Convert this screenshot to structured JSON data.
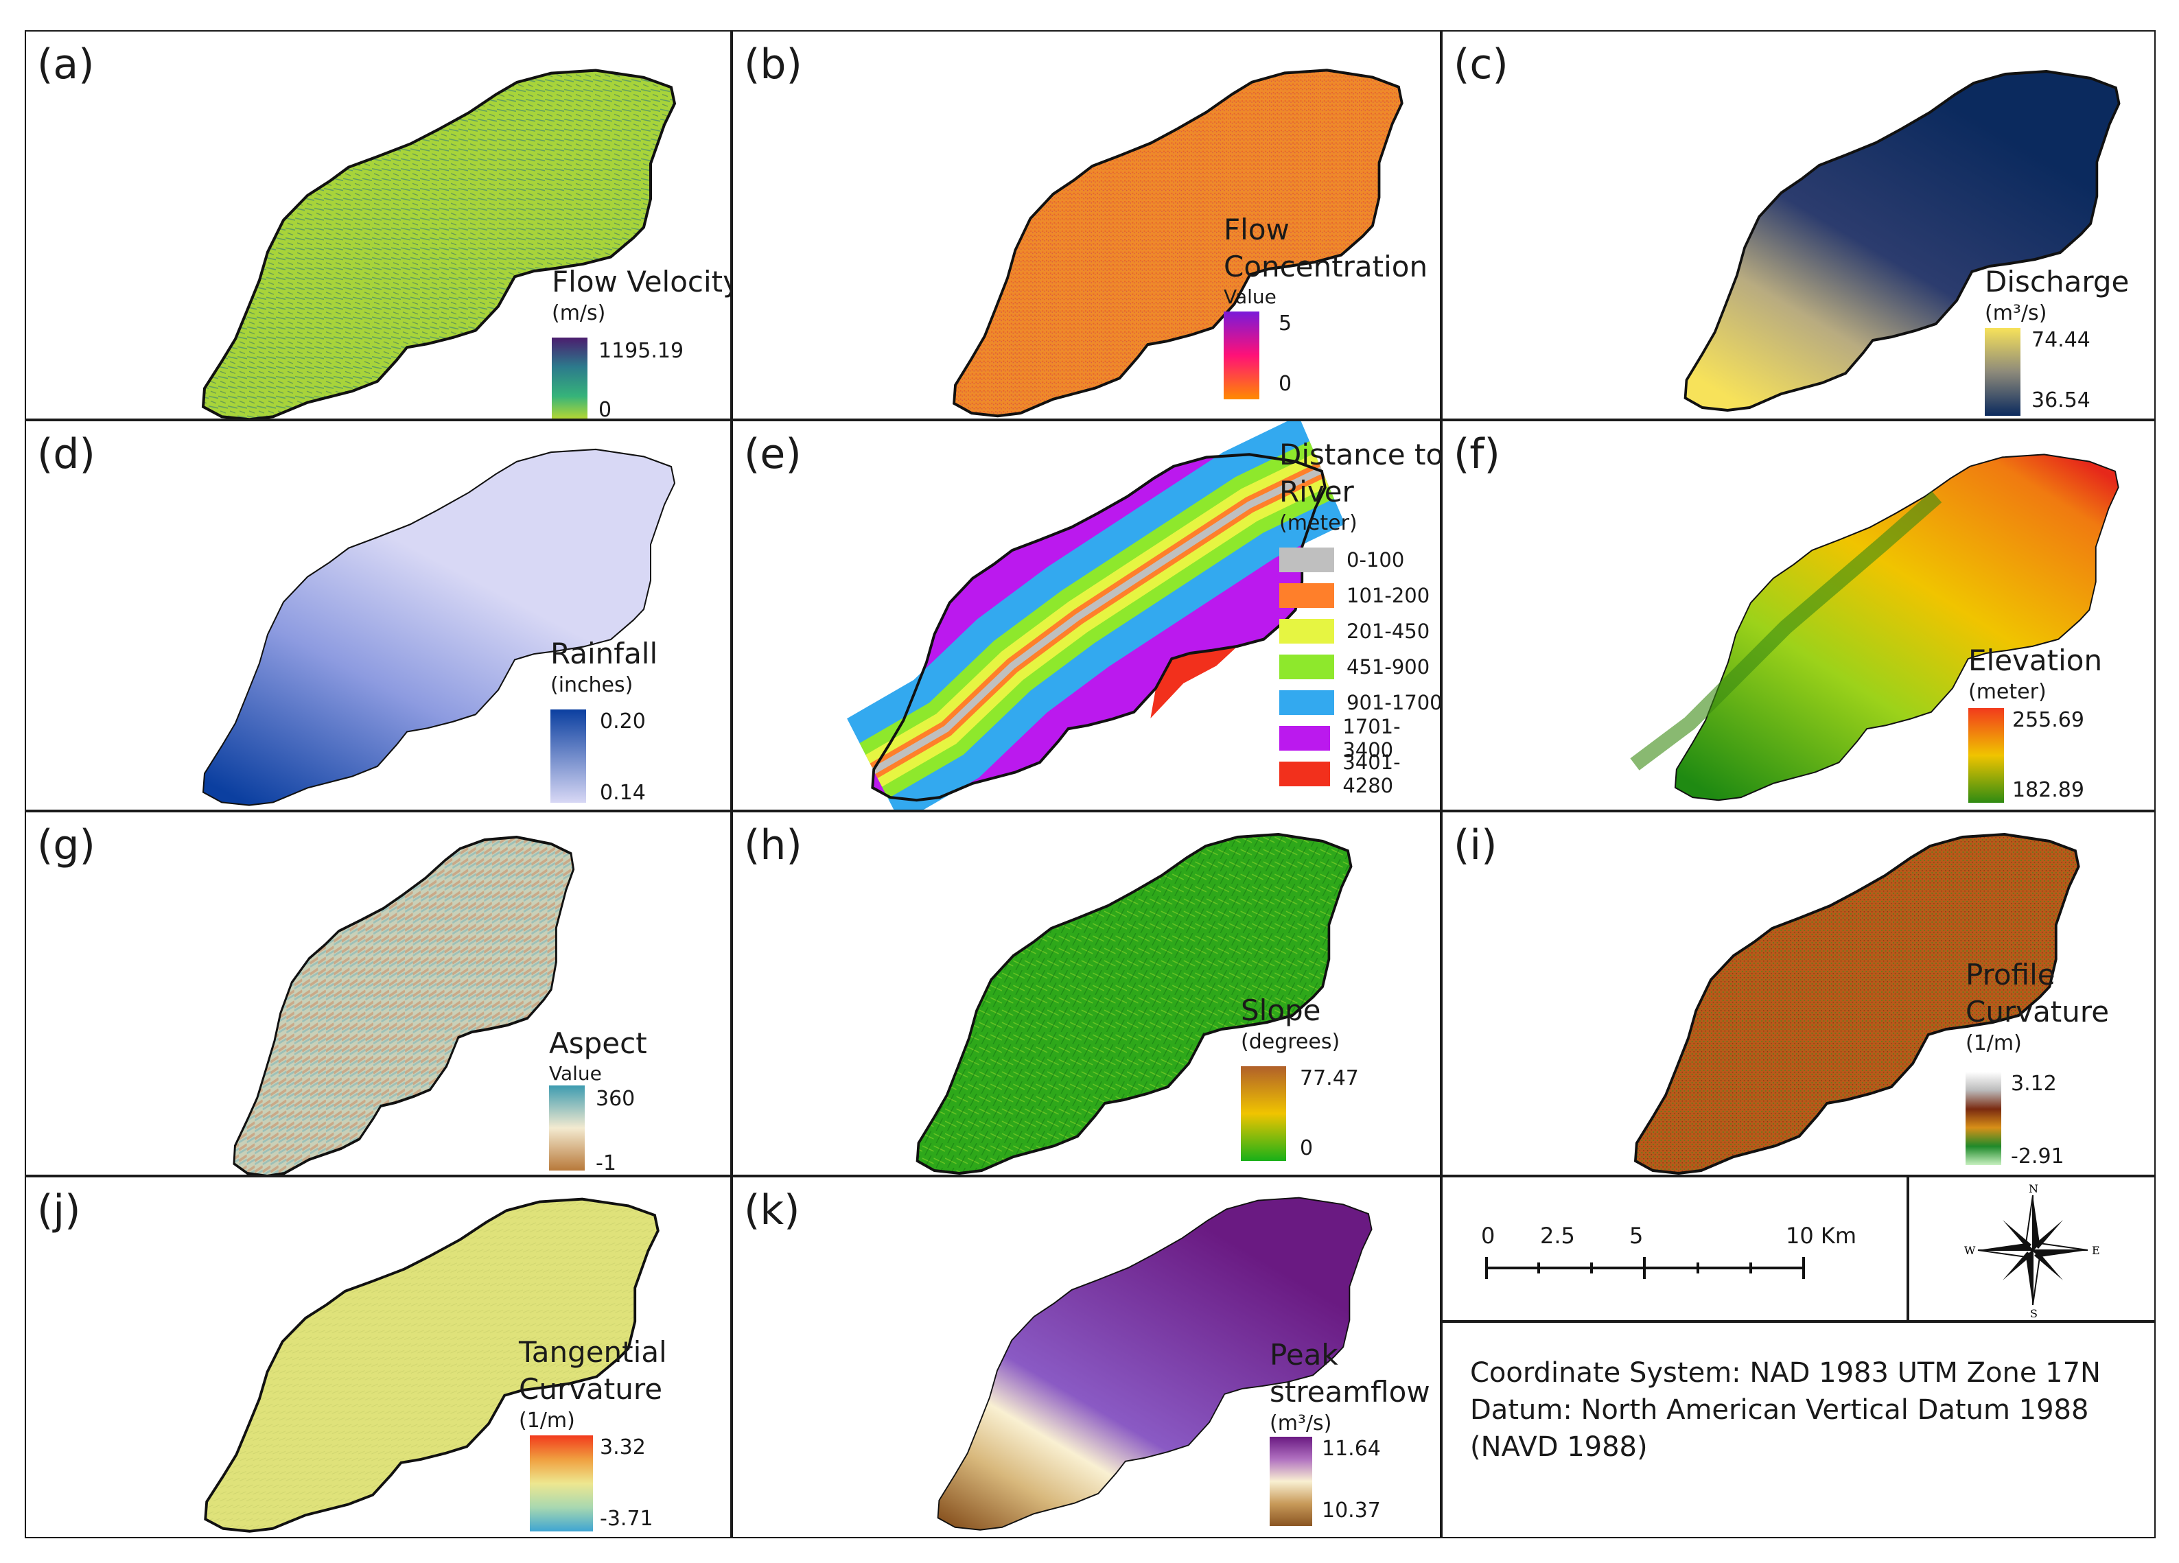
{
  "panels": [
    {
      "id": "a",
      "label": "(a)",
      "title": "Flow Velocity",
      "units": "(m/s)",
      "max": "1195.19",
      "min": "0",
      "colors": [
        "#4b1d6e",
        "#2c7a8c",
        "#36b37a",
        "#d9e21f"
      ]
    },
    {
      "id": "b",
      "label": "(b)",
      "title_lines": [
        "Flow",
        "Concentration"
      ],
      "value_label": "Value",
      "max": "5",
      "min": "0",
      "colors": [
        "#7a1ad9",
        "#ff1177",
        "#ff8a00"
      ]
    },
    {
      "id": "c",
      "label": "(c)",
      "title": "Discharge",
      "units": "(m³/s)",
      "max": "74.44",
      "min": "36.54",
      "colors": [
        "#f7e25a",
        "#8d8a7a",
        "#0b2a5e"
      ]
    },
    {
      "id": "d",
      "label": "(d)",
      "title": "Rainfall",
      "units": "(inches)",
      "max": "0.20",
      "min": "0.14",
      "colors": [
        "#0b3fa0",
        "#d8d8f5"
      ]
    },
    {
      "id": "e",
      "label": "(e)",
      "title_lines": [
        "Distance to",
        "River"
      ],
      "units": "(meter)",
      "classes": [
        {
          "label": "0-100",
          "color": "#bfbfbf"
        },
        {
          "label": "101-200",
          "color": "#ff7f2a"
        },
        {
          "label": "201-450",
          "color": "#e6f542"
        },
        {
          "label": "451-900",
          "color": "#8ee82c"
        },
        {
          "label": "901-1700",
          "color": "#33a9ef"
        },
        {
          "label": "1701-3400",
          "color": "#bb19ee"
        },
        {
          "label": "3401-4280",
          "color": "#f2301c"
        }
      ]
    },
    {
      "id": "f",
      "label": "(f)",
      "title": "Elevation",
      "units": "(meter)",
      "max": "255.69",
      "min": "182.89",
      "colors": [
        "#f23a1c",
        "#f0c400",
        "#2f8b12"
      ]
    },
    {
      "id": "g",
      "label": "(g)",
      "title": "Aspect",
      "value_label": "Value",
      "max": "360",
      "min": "-1",
      "colors": [
        "#3d9bb0",
        "#f3ead0",
        "#b8793a"
      ]
    },
    {
      "id": "h",
      "label": "(h)",
      "title": "Slope",
      "units": "(degrees)",
      "max": "77.47",
      "min": "0",
      "colors": [
        "#b0602a",
        "#f0c400",
        "#18b018"
      ]
    },
    {
      "id": "i",
      "label": "(i)",
      "title_lines": [
        "Profile",
        "Curvature"
      ],
      "units": "(1/m)",
      "max": "3.12",
      "min": "-2.91",
      "colors": [
        "#ffffff",
        "#7a2a10",
        "#d89018",
        "#1f8a2a",
        "#c8f0c0"
      ]
    },
    {
      "id": "j",
      "label": "(j)",
      "title_lines": [
        "Tangential",
        "Curvature"
      ],
      "units": "(1/m)",
      "max": "3.32",
      "min": "-3.71",
      "colors": [
        "#f23a1c",
        "#eee790",
        "#3ea5d2"
      ]
    },
    {
      "id": "k",
      "label": "(k)",
      "title_lines": [
        "Peak",
        "streamflow"
      ],
      "units": "(m³/s)",
      "max": "11.64",
      "min": "10.37",
      "colors": [
        "#6a1a82",
        "#f9f0d2",
        "#8a5522"
      ]
    }
  ],
  "panel_fills": {
    "a": "#9ccc2c",
    "b": "#ee8a28",
    "d": "#d6d8f4",
    "f": "#e9b82a",
    "g": "#c8ccb0",
    "h": "#2ea81a",
    "i": "#b8581a",
    "j": "#dfe27a"
  },
  "scale_bar": {
    "ticks": [
      "0",
      "2.5",
      "5",
      "10 Km"
    ]
  },
  "north_arrow": {
    "n": "N",
    "s": "S",
    "e": "E",
    "w": "W",
    "icon": "compass-rose-icon"
  },
  "coordinate_info": {
    "line1": "Coordinate System: NAD 1983 UTM Zone 17N",
    "line2": "Datum: North American Vertical Datum 1988",
    "line3": "(NAVD 1988)"
  }
}
